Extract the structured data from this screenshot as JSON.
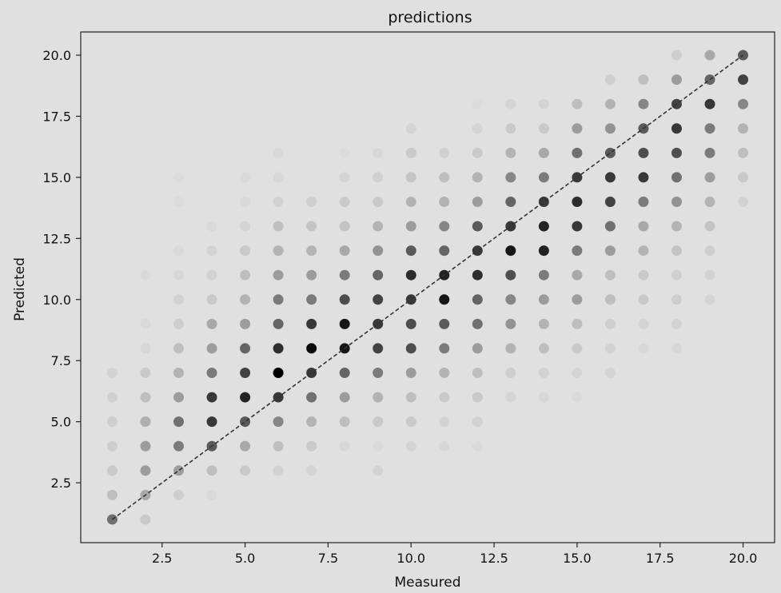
{
  "chart_data": {
    "type": "scatter",
    "title": "predictions",
    "xlabel": "Measured",
    "ylabel": "Predicted",
    "xlim": [
      0.05,
      20.95
    ],
    "ylim": [
      0.05,
      20.95
    ],
    "xticks": [
      "2.5",
      "5.0",
      "7.5",
      "10.0",
      "12.5",
      "15.0",
      "17.5",
      "20.0"
    ],
    "yticks": [
      "2.5",
      "5.0",
      "7.5",
      "10.0",
      "12.5",
      "15.0",
      "17.5",
      "20.0"
    ],
    "grid": false,
    "marker_color": "#000000",
    "reference_line": {
      "x": [
        1,
        20
      ],
      "y": [
        1,
        20
      ],
      "style": "dashed",
      "color": "#333333"
    },
    "series": [
      {
        "points": [
          [
            1,
            1,
            0.5
          ],
          [
            1,
            2,
            0.15
          ],
          [
            1,
            3,
            0.1
          ],
          [
            1,
            4,
            0.08
          ],
          [
            1,
            5,
            0.08
          ],
          [
            1,
            6,
            0.07
          ],
          [
            1,
            7,
            0.06
          ],
          [
            2,
            1,
            0.1
          ],
          [
            2,
            2,
            0.25
          ],
          [
            2,
            3,
            0.3
          ],
          [
            2,
            4,
            0.3
          ],
          [
            2,
            5,
            0.22
          ],
          [
            2,
            6,
            0.15
          ],
          [
            2,
            7,
            0.1
          ],
          [
            2,
            8,
            0.04
          ],
          [
            2,
            9,
            0.03
          ],
          [
            2,
            11,
            0.03
          ],
          [
            3,
            2,
            0.08
          ],
          [
            3,
            3,
            0.3
          ],
          [
            3,
            4,
            0.45
          ],
          [
            3,
            5,
            0.5
          ],
          [
            3,
            6,
            0.3
          ],
          [
            3,
            7,
            0.2
          ],
          [
            3,
            8,
            0.15
          ],
          [
            3,
            9,
            0.08
          ],
          [
            3,
            10,
            0.06
          ],
          [
            3,
            11,
            0.04
          ],
          [
            3,
            12,
            0.03
          ],
          [
            3,
            14,
            0.02
          ],
          [
            3,
            15,
            0.02
          ],
          [
            4,
            2,
            0.03
          ],
          [
            4,
            3,
            0.15
          ],
          [
            4,
            4,
            0.6
          ],
          [
            4,
            5,
            0.75
          ],
          [
            4,
            6,
            0.75
          ],
          [
            4,
            7,
            0.45
          ],
          [
            4,
            8,
            0.3
          ],
          [
            4,
            9,
            0.25
          ],
          [
            4,
            10,
            0.1
          ],
          [
            4,
            11,
            0.06
          ],
          [
            4,
            12,
            0.06
          ],
          [
            4,
            13,
            0.03
          ],
          [
            5,
            3,
            0.1
          ],
          [
            5,
            4,
            0.25
          ],
          [
            5,
            5,
            0.6
          ],
          [
            5,
            6,
            0.85
          ],
          [
            5,
            7,
            0.7
          ],
          [
            5,
            8,
            0.55
          ],
          [
            5,
            9,
            0.3
          ],
          [
            5,
            10,
            0.2
          ],
          [
            5,
            11,
            0.15
          ],
          [
            5,
            12,
            0.1
          ],
          [
            5,
            13,
            0.05
          ],
          [
            5,
            14,
            0.03
          ],
          [
            5,
            15,
            0.03
          ],
          [
            6,
            3,
            0.06
          ],
          [
            6,
            4,
            0.15
          ],
          [
            6,
            5,
            0.4
          ],
          [
            6,
            6,
            0.75
          ],
          [
            6,
            7,
            1.0
          ],
          [
            6,
            8,
            0.8
          ],
          [
            6,
            9,
            0.55
          ],
          [
            6,
            10,
            0.45
          ],
          [
            6,
            11,
            0.3
          ],
          [
            6,
            12,
            0.2
          ],
          [
            6,
            13,
            0.15
          ],
          [
            6,
            14,
            0.06
          ],
          [
            6,
            15,
            0.04
          ],
          [
            6,
            16,
            0.03
          ],
          [
            7,
            3,
            0.05
          ],
          [
            7,
            4,
            0.1
          ],
          [
            7,
            5,
            0.2
          ],
          [
            7,
            6,
            0.5
          ],
          [
            7,
            7,
            0.75
          ],
          [
            7,
            8,
            0.95
          ],
          [
            7,
            9,
            0.75
          ],
          [
            7,
            10,
            0.45
          ],
          [
            7,
            11,
            0.3
          ],
          [
            7,
            12,
            0.2
          ],
          [
            7,
            13,
            0.12
          ],
          [
            7,
            14,
            0.08
          ],
          [
            8,
            4,
            0.04
          ],
          [
            8,
            5,
            0.15
          ],
          [
            8,
            6,
            0.3
          ],
          [
            8,
            7,
            0.55
          ],
          [
            8,
            8,
            0.9
          ],
          [
            8,
            9,
            0.9
          ],
          [
            8,
            10,
            0.65
          ],
          [
            8,
            11,
            0.45
          ],
          [
            8,
            12,
            0.25
          ],
          [
            8,
            13,
            0.12
          ],
          [
            8,
            14,
            0.1
          ],
          [
            8,
            15,
            0.05
          ],
          [
            8,
            16,
            0.02
          ],
          [
            9,
            3,
            0.06
          ],
          [
            9,
            4,
            0.03
          ],
          [
            9,
            5,
            0.1
          ],
          [
            9,
            6,
            0.2
          ],
          [
            9,
            7,
            0.45
          ],
          [
            9,
            8,
            0.7
          ],
          [
            9,
            9,
            0.75
          ],
          [
            9,
            10,
            0.7
          ],
          [
            9,
            11,
            0.55
          ],
          [
            9,
            12,
            0.35
          ],
          [
            9,
            13,
            0.2
          ],
          [
            9,
            14,
            0.1
          ],
          [
            9,
            15,
            0.07
          ],
          [
            9,
            16,
            0.04
          ],
          [
            10,
            4,
            0.05
          ],
          [
            10,
            5,
            0.1
          ],
          [
            10,
            6,
            0.15
          ],
          [
            10,
            7,
            0.3
          ],
          [
            10,
            8,
            0.65
          ],
          [
            10,
            9,
            0.65
          ],
          [
            10,
            10,
            0.75
          ],
          [
            10,
            11,
            0.8
          ],
          [
            10,
            12,
            0.6
          ],
          [
            10,
            13,
            0.3
          ],
          [
            10,
            14,
            0.2
          ],
          [
            10,
            15,
            0.12
          ],
          [
            10,
            16,
            0.1
          ],
          [
            10,
            17,
            0.05
          ],
          [
            11,
            4,
            0.04
          ],
          [
            11,
            5,
            0.06
          ],
          [
            11,
            6,
            0.1
          ],
          [
            11,
            7,
            0.2
          ],
          [
            11,
            8,
            0.45
          ],
          [
            11,
            9,
            0.6
          ],
          [
            11,
            10,
            0.9
          ],
          [
            11,
            11,
            0.85
          ],
          [
            11,
            12,
            0.55
          ],
          [
            11,
            13,
            0.4
          ],
          [
            11,
            14,
            0.2
          ],
          [
            11,
            15,
            0.15
          ],
          [
            11,
            16,
            0.07
          ],
          [
            12,
            4,
            0.03
          ],
          [
            12,
            5,
            0.06
          ],
          [
            12,
            6,
            0.1
          ],
          [
            12,
            7,
            0.15
          ],
          [
            12,
            8,
            0.3
          ],
          [
            12,
            9,
            0.5
          ],
          [
            12,
            10,
            0.55
          ],
          [
            12,
            11,
            0.8
          ],
          [
            12,
            12,
            0.75
          ],
          [
            12,
            13,
            0.6
          ],
          [
            12,
            14,
            0.3
          ],
          [
            12,
            15,
            0.2
          ],
          [
            12,
            16,
            0.1
          ],
          [
            12,
            17,
            0.05
          ],
          [
            12,
            18,
            0.02
          ],
          [
            13,
            6,
            0.05
          ],
          [
            13,
            7,
            0.08
          ],
          [
            13,
            8,
            0.2
          ],
          [
            13,
            9,
            0.35
          ],
          [
            13,
            10,
            0.4
          ],
          [
            13,
            11,
            0.65
          ],
          [
            13,
            12,
            0.9
          ],
          [
            13,
            13,
            0.75
          ],
          [
            13,
            14,
            0.55
          ],
          [
            13,
            15,
            0.4
          ],
          [
            13,
            16,
            0.2
          ],
          [
            13,
            17,
            0.1
          ],
          [
            13,
            18,
            0.05
          ],
          [
            14,
            6,
            0.04
          ],
          [
            14,
            7,
            0.06
          ],
          [
            14,
            8,
            0.15
          ],
          [
            14,
            9,
            0.2
          ],
          [
            14,
            10,
            0.3
          ],
          [
            14,
            11,
            0.45
          ],
          [
            14,
            12,
            0.85
          ],
          [
            14,
            13,
            0.85
          ],
          [
            14,
            14,
            0.75
          ],
          [
            14,
            15,
            0.45
          ],
          [
            14,
            16,
            0.25
          ],
          [
            14,
            17,
            0.1
          ],
          [
            14,
            18,
            0.05
          ],
          [
            15,
            6,
            0.03
          ],
          [
            15,
            7,
            0.05
          ],
          [
            15,
            8,
            0.1
          ],
          [
            15,
            9,
            0.15
          ],
          [
            15,
            10,
            0.3
          ],
          [
            15,
            11,
            0.25
          ],
          [
            15,
            12,
            0.45
          ],
          [
            15,
            13,
            0.75
          ],
          [
            15,
            14,
            0.8
          ],
          [
            15,
            15,
            0.75
          ],
          [
            15,
            16,
            0.5
          ],
          [
            15,
            17,
            0.3
          ],
          [
            15,
            18,
            0.15
          ],
          [
            16,
            7,
            0.05
          ],
          [
            16,
            8,
            0.06
          ],
          [
            16,
            9,
            0.08
          ],
          [
            16,
            10,
            0.15
          ],
          [
            16,
            11,
            0.15
          ],
          [
            16,
            12,
            0.3
          ],
          [
            16,
            13,
            0.5
          ],
          [
            16,
            14,
            0.7
          ],
          [
            16,
            15,
            0.75
          ],
          [
            16,
            16,
            0.6
          ],
          [
            16,
            17,
            0.35
          ],
          [
            16,
            18,
            0.2
          ],
          [
            16,
            19,
            0.08
          ],
          [
            17,
            8,
            0.04
          ],
          [
            17,
            9,
            0.05
          ],
          [
            17,
            10,
            0.1
          ],
          [
            17,
            11,
            0.1
          ],
          [
            17,
            12,
            0.2
          ],
          [
            17,
            13,
            0.25
          ],
          [
            17,
            14,
            0.45
          ],
          [
            17,
            15,
            0.75
          ],
          [
            17,
            16,
            0.65
          ],
          [
            17,
            17,
            0.6
          ],
          [
            17,
            18,
            0.4
          ],
          [
            17,
            19,
            0.15
          ],
          [
            18,
            8,
            0.04
          ],
          [
            18,
            9,
            0.06
          ],
          [
            18,
            10,
            0.08
          ],
          [
            18,
            11,
            0.08
          ],
          [
            18,
            12,
            0.12
          ],
          [
            18,
            13,
            0.2
          ],
          [
            18,
            14,
            0.35
          ],
          [
            18,
            15,
            0.5
          ],
          [
            18,
            16,
            0.65
          ],
          [
            18,
            17,
            0.75
          ],
          [
            18,
            18,
            0.7
          ],
          [
            18,
            19,
            0.3
          ],
          [
            18,
            20,
            0.08
          ],
          [
            19,
            10,
            0.05
          ],
          [
            19,
            11,
            0.06
          ],
          [
            19,
            12,
            0.08
          ],
          [
            19,
            13,
            0.12
          ],
          [
            19,
            14,
            0.2
          ],
          [
            19,
            15,
            0.3
          ],
          [
            19,
            16,
            0.45
          ],
          [
            19,
            17,
            0.45
          ],
          [
            19,
            18,
            0.75
          ],
          [
            19,
            19,
            0.55
          ],
          [
            19,
            20,
            0.25
          ],
          [
            20,
            14,
            0.06
          ],
          [
            20,
            15,
            0.1
          ],
          [
            20,
            16,
            0.15
          ],
          [
            20,
            17,
            0.2
          ],
          [
            20,
            18,
            0.4
          ],
          [
            20,
            19,
            0.7
          ],
          [
            20,
            20,
            0.6
          ]
        ]
      }
    ]
  }
}
